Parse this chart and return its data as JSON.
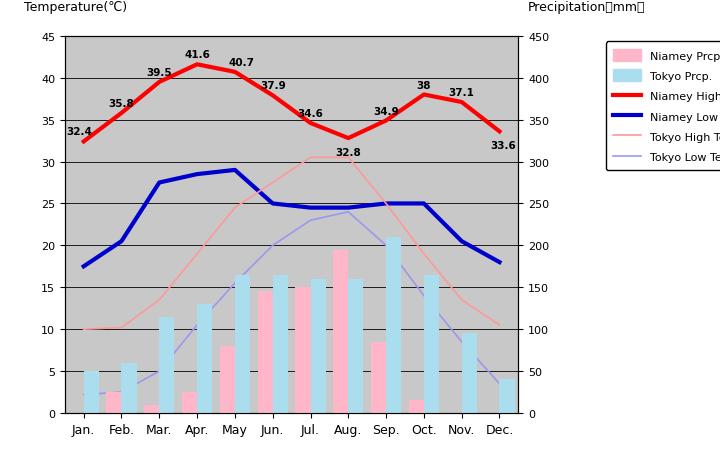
{
  "months": [
    "Jan.",
    "Feb.",
    "Mar.",
    "Apr.",
    "May",
    "Jun.",
    "Jul.",
    "Aug.",
    "Sep.",
    "Oct.",
    "Nov.",
    "Dec."
  ],
  "niamey_high": [
    32.4,
    35.8,
    39.5,
    41.6,
    40.7,
    37.9,
    34.6,
    32.8,
    34.9,
    38.0,
    37.1,
    33.6
  ],
  "niamey_low": [
    17.5,
    20.5,
    27.5,
    28.5,
    29.0,
    25.0,
    24.5,
    24.5,
    25.0,
    25.0,
    20.5,
    18.0
  ],
  "tokyo_high": [
    10.0,
    10.2,
    13.5,
    19.0,
    24.5,
    27.5,
    30.5,
    30.5,
    25.0,
    19.0,
    13.5,
    10.5
  ],
  "tokyo_low": [
    2.2,
    2.5,
    5.0,
    10.5,
    15.5,
    20.0,
    23.0,
    24.0,
    20.0,
    14.0,
    8.5,
    3.5
  ],
  "niamey_prcp": [
    0,
    25,
    10,
    25,
    80,
    145,
    150,
    195,
    85,
    15,
    0,
    0
  ],
  "tokyo_prcp": [
    50,
    60,
    115,
    130,
    165,
    165,
    160,
    160,
    210,
    165,
    95,
    40
  ],
  "niamey_high_labels": [
    "32.4",
    "35.8",
    "39.5",
    "41.6",
    "40.7",
    "37.9",
    "34.6",
    "32.8",
    "34.9",
    "38",
    "37.1",
    "33.6"
  ],
  "bg_color": "#c8c8c8",
  "niamey_high_color": "#ff0000",
  "niamey_low_color": "#0000cc",
  "tokyo_high_color": "#ff9999",
  "tokyo_low_color": "#9999ee",
  "niamey_prcp_color": "#ffb6c8",
  "tokyo_prcp_color": "#aaddee",
  "title_left": "Temperature(℃)",
  "title_right": "Precipitation（mm）",
  "legend_labels": [
    "Niamey Prcp.",
    "Tokyo Prcp.",
    "Niamey High Temp.",
    "Niamey Low Temp.",
    "Tokyo High Temp.",
    "Tokyo Low Temp."
  ]
}
